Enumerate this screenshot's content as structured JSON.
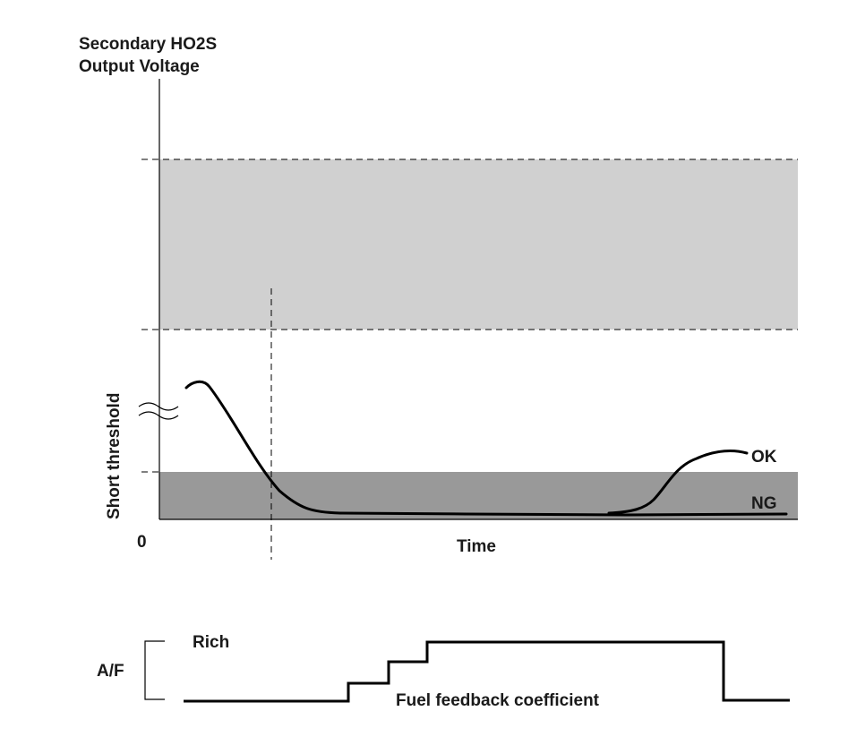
{
  "upper_chart": {
    "title_lines": [
      "Secondary HO2S",
      "Output Voltage"
    ],
    "y_axis_label": "Short threshold",
    "origin_label": "0",
    "x_axis_label": "Time",
    "curve_ok_label": "OK",
    "curve_ng_label": "NG"
  },
  "lower_chart": {
    "y_axis_label": "A/F",
    "rich_label": "Rich",
    "signal_label": "Fuel feedback coefficient"
  },
  "colors": {
    "upper_band": "#d0d0d0",
    "threshold_band": "#999999",
    "curve": "#000000",
    "text": "#1a1a1a"
  }
}
